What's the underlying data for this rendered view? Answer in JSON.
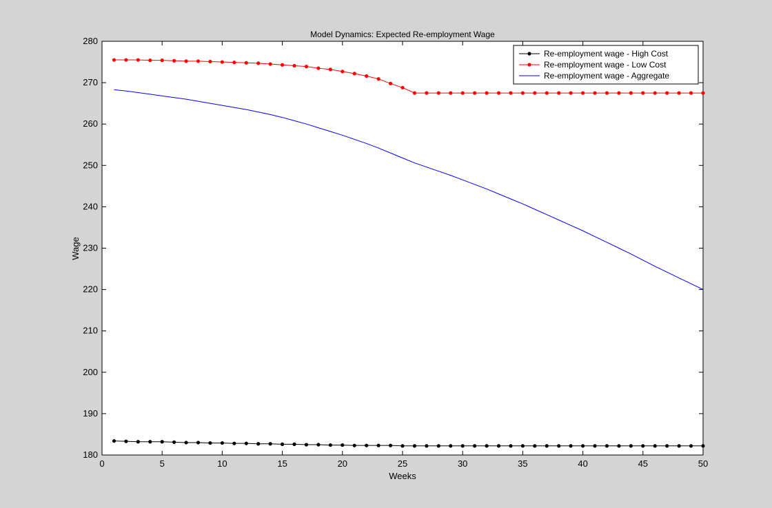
{
  "chart_data": {
    "type": "line",
    "title": "Model Dynamics: Expected Re-employment Wage",
    "xlabel": "Weeks",
    "ylabel": "Wage",
    "xlim": [
      0,
      50
    ],
    "ylim": [
      180,
      280
    ],
    "xticks": [
      0,
      5,
      10,
      15,
      20,
      25,
      30,
      35,
      40,
      45,
      50
    ],
    "yticks": [
      180,
      190,
      200,
      210,
      220,
      230,
      240,
      250,
      260,
      270,
      280
    ],
    "grid": false,
    "legend_position": "top-right",
    "x": [
      1,
      2,
      3,
      4,
      5,
      6,
      7,
      8,
      9,
      10,
      11,
      12,
      13,
      14,
      15,
      16,
      17,
      18,
      19,
      20,
      21,
      22,
      23,
      24,
      25,
      26,
      27,
      28,
      29,
      30,
      31,
      32,
      33,
      34,
      35,
      36,
      37,
      38,
      39,
      40,
      41,
      42,
      43,
      44,
      45,
      46,
      47,
      48,
      49,
      50
    ],
    "series": [
      {
        "name": "Re-employment wage - High Cost",
        "color": "#000000",
        "marker": "dot",
        "values": [
          183.4,
          183.3,
          183.2,
          183.2,
          183.2,
          183.1,
          183.0,
          183.0,
          182.9,
          182.9,
          182.8,
          182.8,
          182.7,
          182.7,
          182.6,
          182.6,
          182.5,
          182.5,
          182.4,
          182.4,
          182.3,
          182.3,
          182.3,
          182.3,
          182.2,
          182.2,
          182.2,
          182.2,
          182.2,
          182.2,
          182.2,
          182.2,
          182.2,
          182.2,
          182.2,
          182.2,
          182.2,
          182.2,
          182.2,
          182.2,
          182.2,
          182.2,
          182.2,
          182.2,
          182.2,
          182.2,
          182.2,
          182.2,
          182.2,
          182.2
        ]
      },
      {
        "name": "Re-employment wage - Low Cost",
        "color": "#ff0000",
        "marker": "dot",
        "values": [
          275.5,
          275.5,
          275.5,
          275.4,
          275.4,
          275.3,
          275.2,
          275.2,
          275.1,
          275.0,
          274.9,
          274.8,
          274.7,
          274.5,
          274.3,
          274.1,
          273.9,
          273.5,
          273.2,
          272.7,
          272.2,
          271.6,
          270.9,
          269.8,
          268.8,
          267.5,
          267.5,
          267.5,
          267.5,
          267.5,
          267.5,
          267.5,
          267.5,
          267.5,
          267.5,
          267.5,
          267.5,
          267.5,
          267.5,
          267.5,
          267.5,
          267.5,
          267.5,
          267.5,
          267.5,
          267.5,
          267.5,
          267.5,
          267.5,
          267.5
        ]
      },
      {
        "name": "Re-employment wage - Aggregate",
        "color": "#0000ff",
        "marker": "none",
        "values": [
          268.3,
          268.0,
          267.6,
          267.2,
          266.8,
          266.4,
          266.0,
          265.5,
          265.0,
          264.5,
          264.0,
          263.5,
          262.9,
          262.3,
          261.6,
          260.8,
          260.0,
          259.1,
          258.2,
          257.3,
          256.3,
          255.3,
          254.2,
          253.0,
          251.8,
          250.6,
          249.6,
          248.6,
          247.6,
          246.5,
          245.4,
          244.3,
          243.1,
          241.9,
          240.7,
          239.4,
          238.1,
          236.8,
          235.5,
          234.2,
          232.8,
          231.4,
          230.0,
          228.6,
          227.1,
          225.6,
          224.2,
          222.8,
          221.4,
          220.0
        ]
      }
    ]
  }
}
